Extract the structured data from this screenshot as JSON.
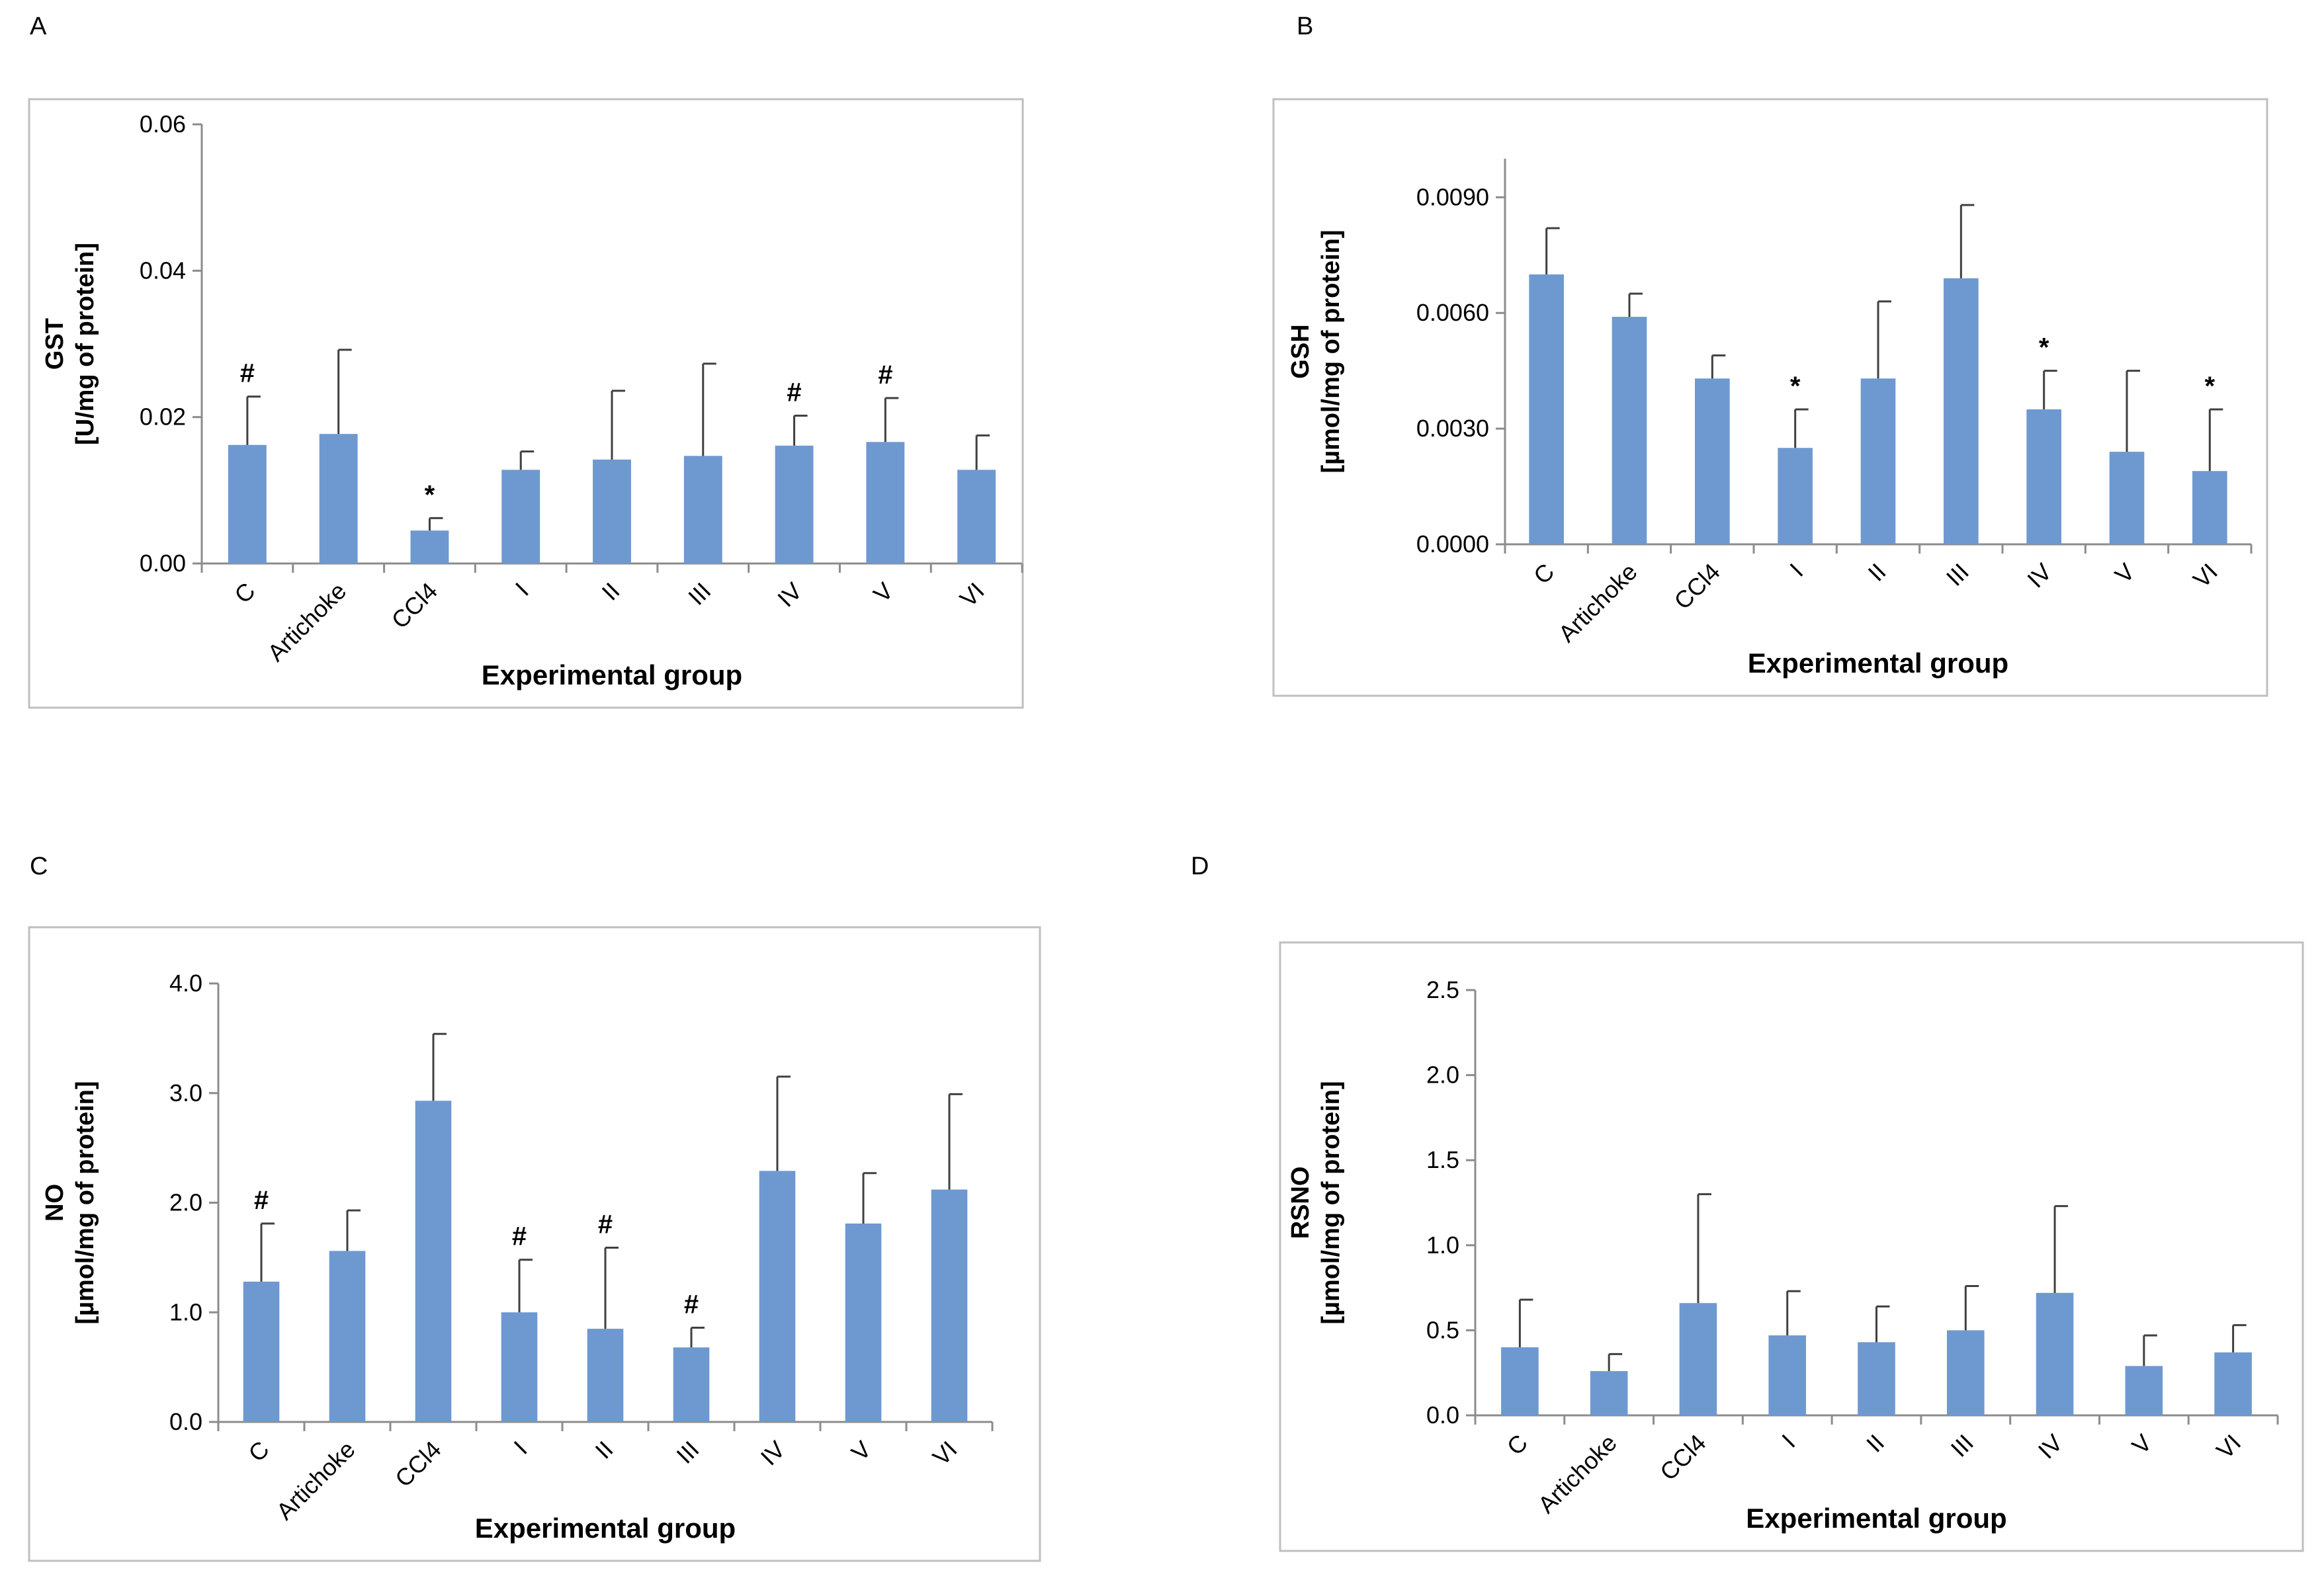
{
  "chart_data": [
    {
      "panel": "A",
      "type": "bar",
      "categories": [
        "C",
        "Artichoke",
        "CCl4",
        "I",
        "II",
        "III",
        "IV",
        "V",
        "VI"
      ],
      "values": [
        0.0162,
        0.0177,
        0.0045,
        0.0128,
        0.0142,
        0.0147,
        0.0161,
        0.0166,
        0.0128
      ],
      "errors": [
        0.0066,
        0.0115,
        0.0017,
        0.0025,
        0.0094,
        0.0126,
        0.0041,
        0.006,
        0.0047
      ],
      "markers": [
        "#",
        "",
        "*",
        "",
        "",
        "",
        "#",
        "#",
        ""
      ],
      "ylabel_line1": "GST",
      "ylabel_line2": "[U/mg of protein]",
      "xlabel": "Experimental group",
      "ylim": [
        0,
        0.06
      ],
      "yticks": [
        "0.00",
        "0.02",
        "0.04",
        "0.06"
      ]
    },
    {
      "panel": "B",
      "type": "bar",
      "categories": [
        "C",
        "Artichoke",
        "CCl4",
        "I",
        "II",
        "III",
        "IV",
        "V",
        "VI"
      ],
      "values": [
        0.007,
        0.0059,
        0.0043,
        0.0025,
        0.0043,
        0.0069,
        0.0035,
        0.0024,
        0.0019
      ],
      "errors": [
        0.0012,
        0.0006,
        0.0006,
        0.001,
        0.002,
        0.0019,
        0.001,
        0.0021,
        0.0016
      ],
      "markers": [
        "",
        "",
        "",
        "*",
        "",
        "",
        "*",
        "",
        "*"
      ],
      "ylabel_line1": "GSH",
      "ylabel_line2": "[µmol/mg of protein]",
      "xlabel": "Experimental group",
      "ylim": [
        0,
        0.01
      ],
      "yticks": [
        "0.0000",
        "0.0030",
        "0.0060",
        "0.0090"
      ]
    },
    {
      "panel": "C",
      "type": "bar",
      "categories": [
        "C",
        "Artichoke",
        "CCl4",
        "I",
        "II",
        "III",
        "IV",
        "V",
        "VI"
      ],
      "values": [
        1.28,
        1.56,
        2.93,
        1.0,
        0.85,
        0.68,
        2.29,
        1.81,
        2.12
      ],
      "errors": [
        0.53,
        0.37,
        0.61,
        0.48,
        0.74,
        0.18,
        0.86,
        0.46,
        0.87
      ],
      "markers": [
        "#",
        "",
        "",
        "#",
        "#",
        "#",
        "",
        "",
        ""
      ],
      "ylabel_line1": "NO",
      "ylabel_line2": "[µmol/mg of protein]",
      "xlabel": "Experimental group",
      "ylim": [
        0,
        4.0
      ],
      "yticks": [
        "0.0",
        "1.0",
        "2.0",
        "3.0",
        "4.0"
      ]
    },
    {
      "panel": "D",
      "type": "bar",
      "categories": [
        "C",
        "Artichoke",
        "CCl4",
        "I",
        "II",
        "III",
        "IV",
        "V",
        "VI"
      ],
      "values": [
        0.4,
        0.26,
        0.66,
        0.47,
        0.43,
        0.5,
        0.72,
        0.29,
        0.37
      ],
      "errors": [
        0.28,
        0.1,
        0.64,
        0.26,
        0.21,
        0.26,
        0.51,
        0.18,
        0.16
      ],
      "markers": [
        "",
        "",
        "",
        "",
        "",
        "",
        "",
        "",
        ""
      ],
      "ylabel_line1": "RSNO",
      "ylabel_line2": "[µmol/mg of protein]",
      "xlabel": "Experimental group",
      "ylim": [
        0,
        2.5
      ],
      "yticks": [
        "0.0",
        "0.5",
        "1.0",
        "1.5",
        "2.0",
        "2.5"
      ]
    }
  ]
}
